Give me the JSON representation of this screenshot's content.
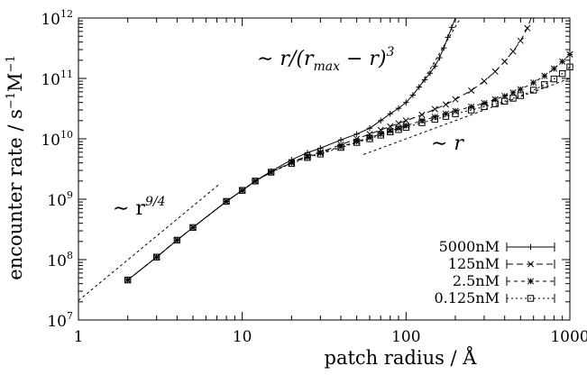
{
  "chart_data": {
    "type": "line",
    "xlabel": "patch radius / Å",
    "ylabel_main": "encounter rate / s",
    "ylabel_sup1": "−1",
    "ylabel_mid": "M",
    "ylabel_sup2": "−1",
    "xscale": "log",
    "yscale": "log",
    "xlim": [
      1,
      1000
    ],
    "ylim": [
      10000000,
      1000000000000
    ],
    "x_ticks": [
      {
        "value": 1,
        "label": "1"
      },
      {
        "value": 10,
        "label": "10"
      },
      {
        "value": 100,
        "label": "100"
      },
      {
        "value": 1000,
        "label": "1000"
      }
    ],
    "y_ticks": [
      {
        "value": 10000000,
        "base": "10",
        "exp": "7"
      },
      {
        "value": 100000000,
        "base": "10",
        "exp": "8"
      },
      {
        "value": 1000000000,
        "base": "10",
        "exp": "9"
      },
      {
        "value": 10000000000,
        "base": "10",
        "exp": "10"
      },
      {
        "value": 100000000000,
        "base": "10",
        "exp": "11"
      },
      {
        "value": 1000000000000,
        "base": "10",
        "exp": "12"
      }
    ],
    "grid": false,
    "legend_position": "bottom-right",
    "series": [
      {
        "name": "5000nM",
        "marker": "plus",
        "dash": "",
        "points": [
          [
            2,
            46000000.0
          ],
          [
            3,
            110000000.0
          ],
          [
            4,
            210000000.0
          ],
          [
            5,
            340000000.0
          ],
          [
            8,
            920000000.0
          ],
          [
            10,
            1400000000.0
          ],
          [
            12,
            2000000000.0
          ],
          [
            15,
            2900000000.0
          ],
          [
            20,
            4500000000.0
          ],
          [
            25,
            5900000000.0
          ],
          [
            30,
            7000000000.0
          ],
          [
            40,
            9600000000.0
          ],
          [
            50,
            12000000000.0
          ],
          [
            60,
            15000000000.0
          ],
          [
            70,
            20000000000.0
          ],
          [
            80,
            26000000000.0
          ],
          [
            90,
            32000000000.0
          ],
          [
            100,
            40000000000.0
          ],
          [
            110,
            53000000000.0
          ],
          [
            120,
            72000000000.0
          ],
          [
            130,
            95000000000.0
          ],
          [
            140,
            122000000000.0
          ],
          [
            150,
            160000000000.0
          ],
          [
            160,
            220000000000.0
          ],
          [
            170,
            320000000000.0
          ],
          [
            180,
            480000000000.0
          ],
          [
            190,
            700000000000.0
          ],
          [
            200,
            1000000000000.0
          ]
        ]
      },
      {
        "name": "125nM",
        "marker": "cross",
        "dash": "7,4",
        "points": [
          [
            2,
            46000000.0
          ],
          [
            3,
            110000000.0
          ],
          [
            4,
            210000000.0
          ],
          [
            5,
            340000000.0
          ],
          [
            8,
            920000000.0
          ],
          [
            10,
            1400000000.0
          ],
          [
            12,
            2000000000.0
          ],
          [
            15,
            2800000000.0
          ],
          [
            20,
            4100000000.0
          ],
          [
            25,
            5200000000.0
          ],
          [
            30,
            6000000000.0
          ],
          [
            40,
            8000000000.0
          ],
          [
            50,
            10000000000.0
          ],
          [
            60,
            12000000000.0
          ],
          [
            70,
            14000000000.0
          ],
          [
            80,
            16000000000.0
          ],
          [
            90,
            18000000000.0
          ],
          [
            100,
            20000000000.0
          ],
          [
            125,
            25000000000.0
          ],
          [
            150,
            31000000000.0
          ],
          [
            175,
            37000000000.0
          ],
          [
            200,
            45000000000.0
          ],
          [
            250,
            63000000000.0
          ],
          [
            300,
            90000000000.0
          ],
          [
            350,
            130000000000.0
          ],
          [
            400,
            190000000000.0
          ],
          [
            450,
            280000000000.0
          ],
          [
            500,
            420000000000.0
          ],
          [
            550,
            680000000000.0
          ],
          [
            580,
            1000000000000.0
          ]
        ]
      },
      {
        "name": "2.5nM",
        "marker": "star",
        "dash": "4,4",
        "points": [
          [
            2,
            46000000.0
          ],
          [
            3,
            110000000.0
          ],
          [
            4,
            210000000.0
          ],
          [
            5,
            340000000.0
          ],
          [
            8,
            920000000.0
          ],
          [
            10,
            1400000000.0
          ],
          [
            12,
            2000000000.0
          ],
          [
            15,
            2800000000.0
          ],
          [
            20,
            4000000000.0
          ],
          [
            25,
            5000000000.0
          ],
          [
            30,
            5800000000.0
          ],
          [
            40,
            7400000000.0
          ],
          [
            50,
            9000000000.0
          ],
          [
            60,
            10500000000.0
          ],
          [
            70,
            12000000000.0
          ],
          [
            80,
            13500000000.0
          ],
          [
            90,
            15000000000.0
          ],
          [
            100,
            16500000000.0
          ],
          [
            125,
            20000000000.0
          ],
          [
            150,
            23000000000.0
          ],
          [
            175,
            26000000000.0
          ],
          [
            200,
            29000000000.0
          ],
          [
            250,
            34000000000.0
          ],
          [
            300,
            39000000000.0
          ],
          [
            350,
            45000000000.0
          ],
          [
            400,
            51000000000.0
          ],
          [
            450,
            58000000000.0
          ],
          [
            500,
            66000000000.0
          ],
          [
            600,
            85000000000.0
          ],
          [
            700,
            110000000000.0
          ],
          [
            800,
            145000000000.0
          ],
          [
            900,
            190000000000.0
          ],
          [
            1000,
            250000000000.0
          ]
        ]
      },
      {
        "name": "0.125nM",
        "marker": "square",
        "dash": "2,3",
        "points": [
          [
            2,
            46000000.0
          ],
          [
            3,
            110000000.0
          ],
          [
            4,
            210000000.0
          ],
          [
            5,
            340000000.0
          ],
          [
            8,
            920000000.0
          ],
          [
            10,
            1400000000.0
          ],
          [
            12,
            2000000000.0
          ],
          [
            15,
            2800000000.0
          ],
          [
            20,
            3900000000.0
          ],
          [
            25,
            4900000000.0
          ],
          [
            30,
            5600000000.0
          ],
          [
            40,
            7200000000.0
          ],
          [
            50,
            8700000000.0
          ],
          [
            60,
            10000000000.0
          ],
          [
            70,
            11500000000.0
          ],
          [
            80,
            13000000000.0
          ],
          [
            90,
            14200000000.0
          ],
          [
            100,
            15500000000.0
          ],
          [
            125,
            18500000000.0
          ],
          [
            150,
            21000000000.0
          ],
          [
            175,
            23500000000.0
          ],
          [
            200,
            26000000000.0
          ],
          [
            250,
            30000000000.0
          ],
          [
            300,
            34000000000.0
          ],
          [
            350,
            38000000000.0
          ],
          [
            400,
            42000000000.0
          ],
          [
            450,
            47000000000.0
          ],
          [
            500,
            52000000000.0
          ],
          [
            600,
            64000000000.0
          ],
          [
            700,
            79000000000.0
          ],
          [
            800,
            98000000000.0
          ],
          [
            900,
            120000000000.0
          ],
          [
            1000,
            155000000000.0
          ]
        ]
      }
    ],
    "reference_lines": [
      {
        "label": "r9/4",
        "points": [
          [
            1,
            21000000.0
          ],
          [
            7.3,
            1800000000.0
          ]
        ]
      },
      {
        "label": "r",
        "points": [
          [
            55,
            5500000000.0
          ],
          [
            1000,
            100000000000.0
          ]
        ]
      },
      {
        "label": "r/(rmax-r)3",
        "points": [
          [
            120,
            70000000000.0
          ],
          [
            215,
            1000000000000.0
          ]
        ]
      }
    ],
    "annotations": {
      "r94_base": "∼ r",
      "r94_exp": "9/4",
      "r_linear": "∼ r",
      "rmax_prefix": "∼ r/(r",
      "rmax_sub": "max",
      "rmax_suffix": " − r)",
      "rmax_exp": "3"
    }
  }
}
